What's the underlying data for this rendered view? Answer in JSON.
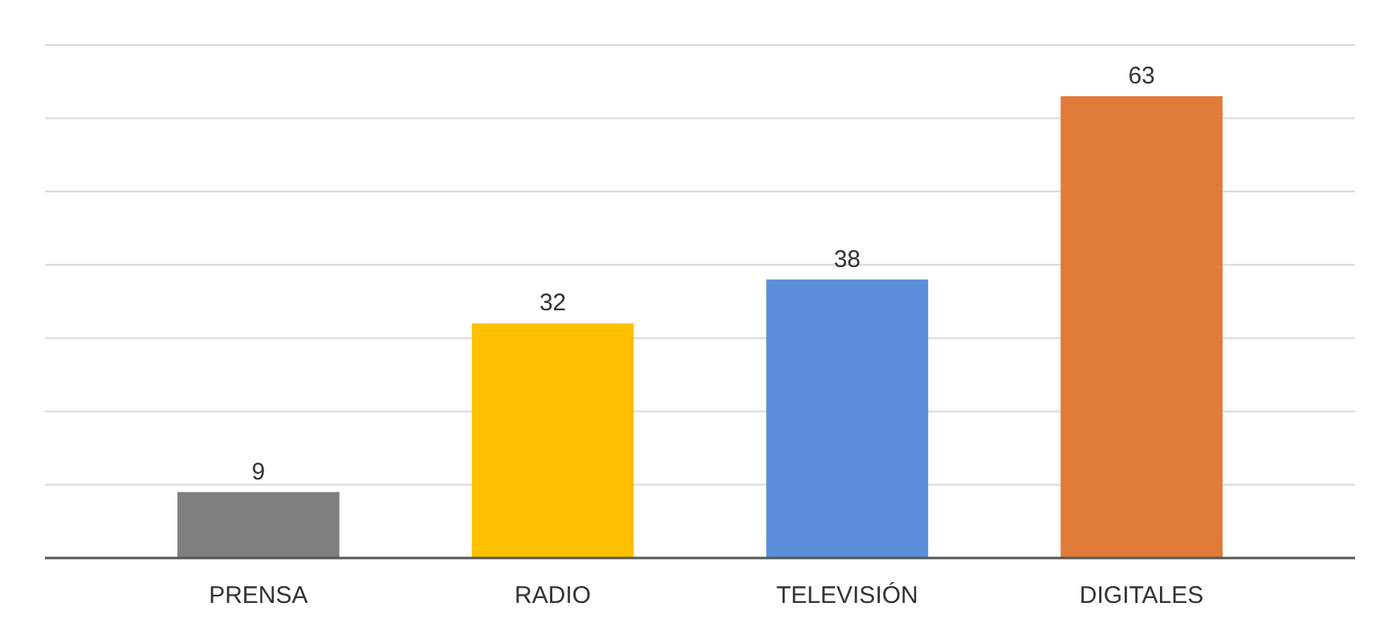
{
  "chart_data": {
    "type": "bar",
    "categories": [
      "PRENSA",
      "RADIO",
      "TELEVISIÓN",
      "DIGITALES"
    ],
    "values": [
      9,
      32,
      38,
      63
    ],
    "colors": [
      "#7f7f7f",
      "#ffc000",
      "#5b8fd9",
      "#e07b39"
    ],
    "ylim": [
      0,
      70
    ],
    "yticks": [
      {
        "value": 0,
        "label": null
      },
      {
        "value": 10,
        "label": null
      },
      {
        "value": 20,
        "label": null
      },
      {
        "value": 30,
        "label": null
      },
      {
        "value": 40,
        "label": null
      },
      {
        "value": 50,
        "label": null
      },
      {
        "value": 60,
        "label": null
      },
      {
        "value": 70,
        "label": null
      }
    ],
    "grid": true,
    "data_labels": true
  }
}
